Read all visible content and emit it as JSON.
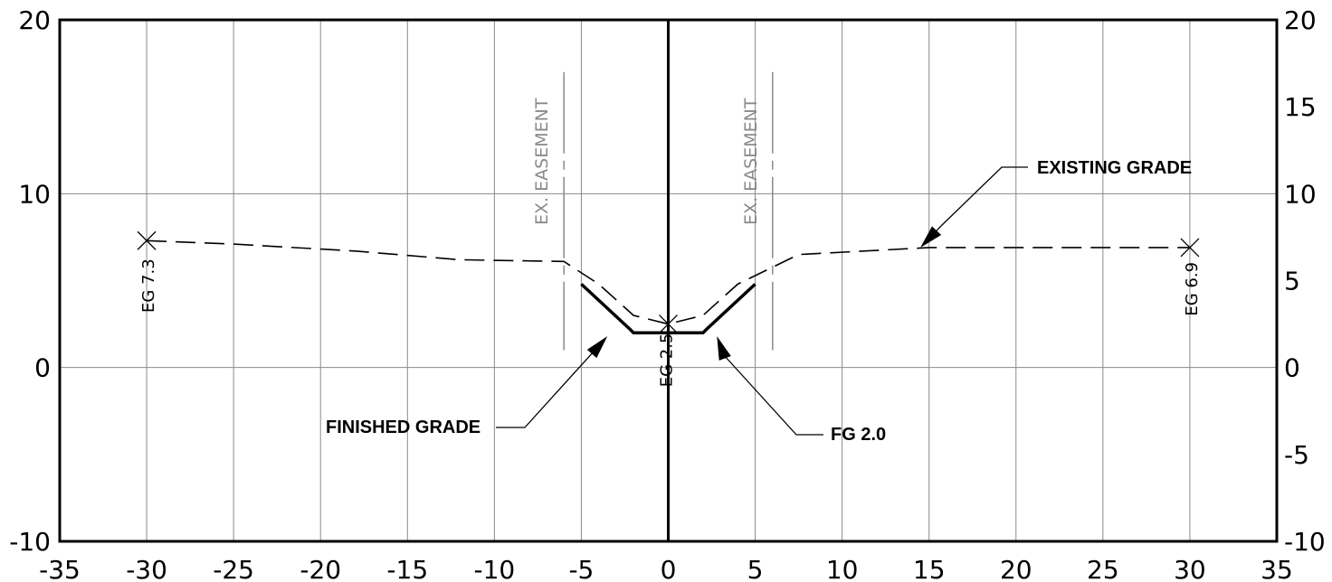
{
  "chart_data": {
    "type": "line",
    "xlim": [
      -35,
      35
    ],
    "ylim": [
      -10,
      20
    ],
    "x_ticks": [
      -35,
      -30,
      -25,
      -20,
      -15,
      -10,
      -5,
      0,
      5,
      10,
      15,
      20,
      25,
      30,
      35
    ],
    "x_tick_labels": [
      "-35",
      "-30",
      "-25",
      "-20",
      "-15",
      "-10",
      "-5",
      "0",
      "5",
      "10",
      "15",
      "20",
      "25",
      "30",
      "35"
    ],
    "y_ticks_left": [
      -10,
      0,
      10,
      20
    ],
    "y_tick_labels_left": [
      "-10",
      "0",
      "10",
      "20"
    ],
    "y_ticks_right": [
      -10,
      -5,
      0,
      5,
      10,
      15,
      20
    ],
    "y_tick_labels_right": [
      "-10",
      "-5",
      "0",
      "5",
      "10",
      "15",
      "20"
    ],
    "grid": true,
    "series": [
      {
        "style": "dashed",
        "x": [
          -30,
          -25,
          -18,
          -12,
          -6,
          -4,
          -2,
          0,
          2,
          4,
          7.5,
          15,
          30
        ],
        "y": [
          7.3,
          7.1,
          6.7,
          6.2,
          6.1,
          4.8,
          3.0,
          2.5,
          3.0,
          4.8,
          6.5,
          6.9,
          6.9
        ]
      },
      {
        "style": "solid",
        "x": [
          -5,
          -2.2,
          -2,
          2,
          2.2,
          5
        ],
        "y": [
          4.8,
          2.2,
          2.0,
          2.0,
          2.2,
          4.8
        ]
      }
    ],
    "points": [
      {
        "x": -30,
        "y": 7.3,
        "label": "EG 7.3"
      },
      {
        "x": 0,
        "y": 2.5,
        "label": "EG 2.5"
      },
      {
        "x": 30,
        "y": 6.9,
        "label": "EG 6.9"
      }
    ],
    "easements": [
      {
        "x": -6,
        "label": "EX. EASEMENT"
      },
      {
        "x": 6,
        "label": "EX. EASEMENT"
      }
    ],
    "annotations": [
      {
        "text": "EXISTING GRADE",
        "target_x": 14.5,
        "target_y": 6.9
      },
      {
        "text": "FINISHED GRADE",
        "target_x": -3.5,
        "target_y": 1.8
      },
      {
        "text": "FG 2.0",
        "target_x": 2.8,
        "target_y": 1.8
      }
    ]
  }
}
